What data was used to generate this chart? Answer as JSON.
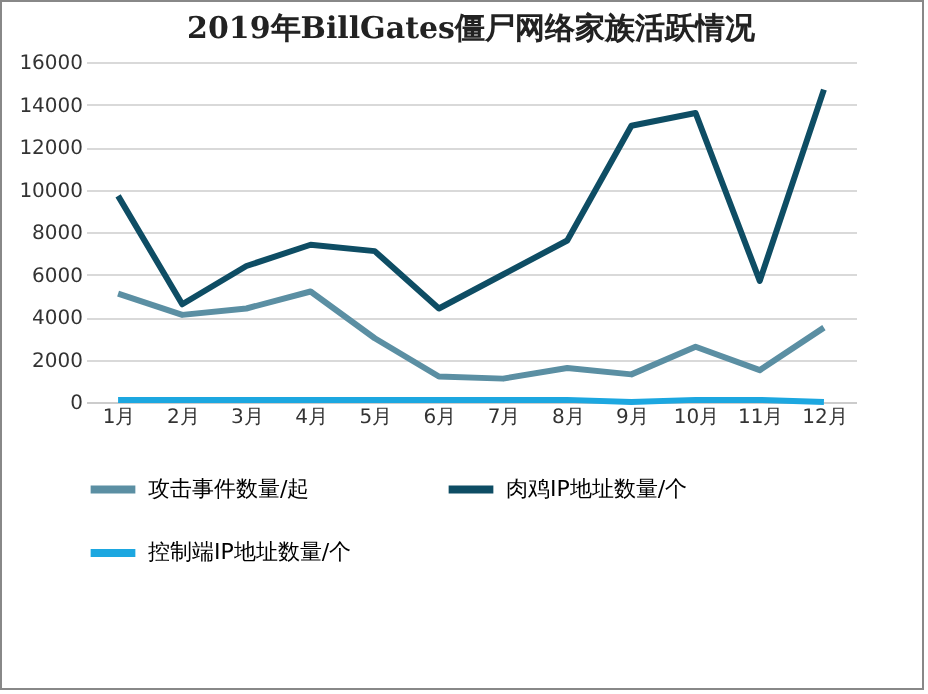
{
  "chart_data": {
    "type": "line",
    "title": "2019年BillGates僵尸网络家族活跃情况",
    "categories": [
      "1月",
      "2月",
      "3月",
      "4月",
      "5月",
      "6月",
      "7月",
      "8月",
      "9月",
      "10月",
      "11月",
      "12月"
    ],
    "series": [
      {
        "name": "攻击事件数量/起",
        "color": "#5b8fa3",
        "values": [
          5100,
          4100,
          4400,
          5200,
          3000,
          1200,
          1100,
          1600,
          1300,
          2600,
          1500,
          3500
        ]
      },
      {
        "name": "肉鸡IP地址数量/个",
        "color": "#0e4d64",
        "values": [
          9700,
          4600,
          6400,
          7400,
          7100,
          4400,
          6000,
          7600,
          13000,
          13600,
          5700,
          14700
        ]
      },
      {
        "name": "控制端IP地址数量/个",
        "color": "#1ca7e0",
        "values": [
          100,
          100,
          100,
          100,
          100,
          100,
          100,
          100,
          0,
          100,
          100,
          0
        ]
      }
    ],
    "ylim": [
      0,
      16000
    ],
    "yticks": [
      0,
      2000,
      4000,
      6000,
      8000,
      10000,
      12000,
      14000,
      16000
    ],
    "grid": "y",
    "legend": "bottom",
    "marker": "none",
    "line_style": "solid"
  }
}
